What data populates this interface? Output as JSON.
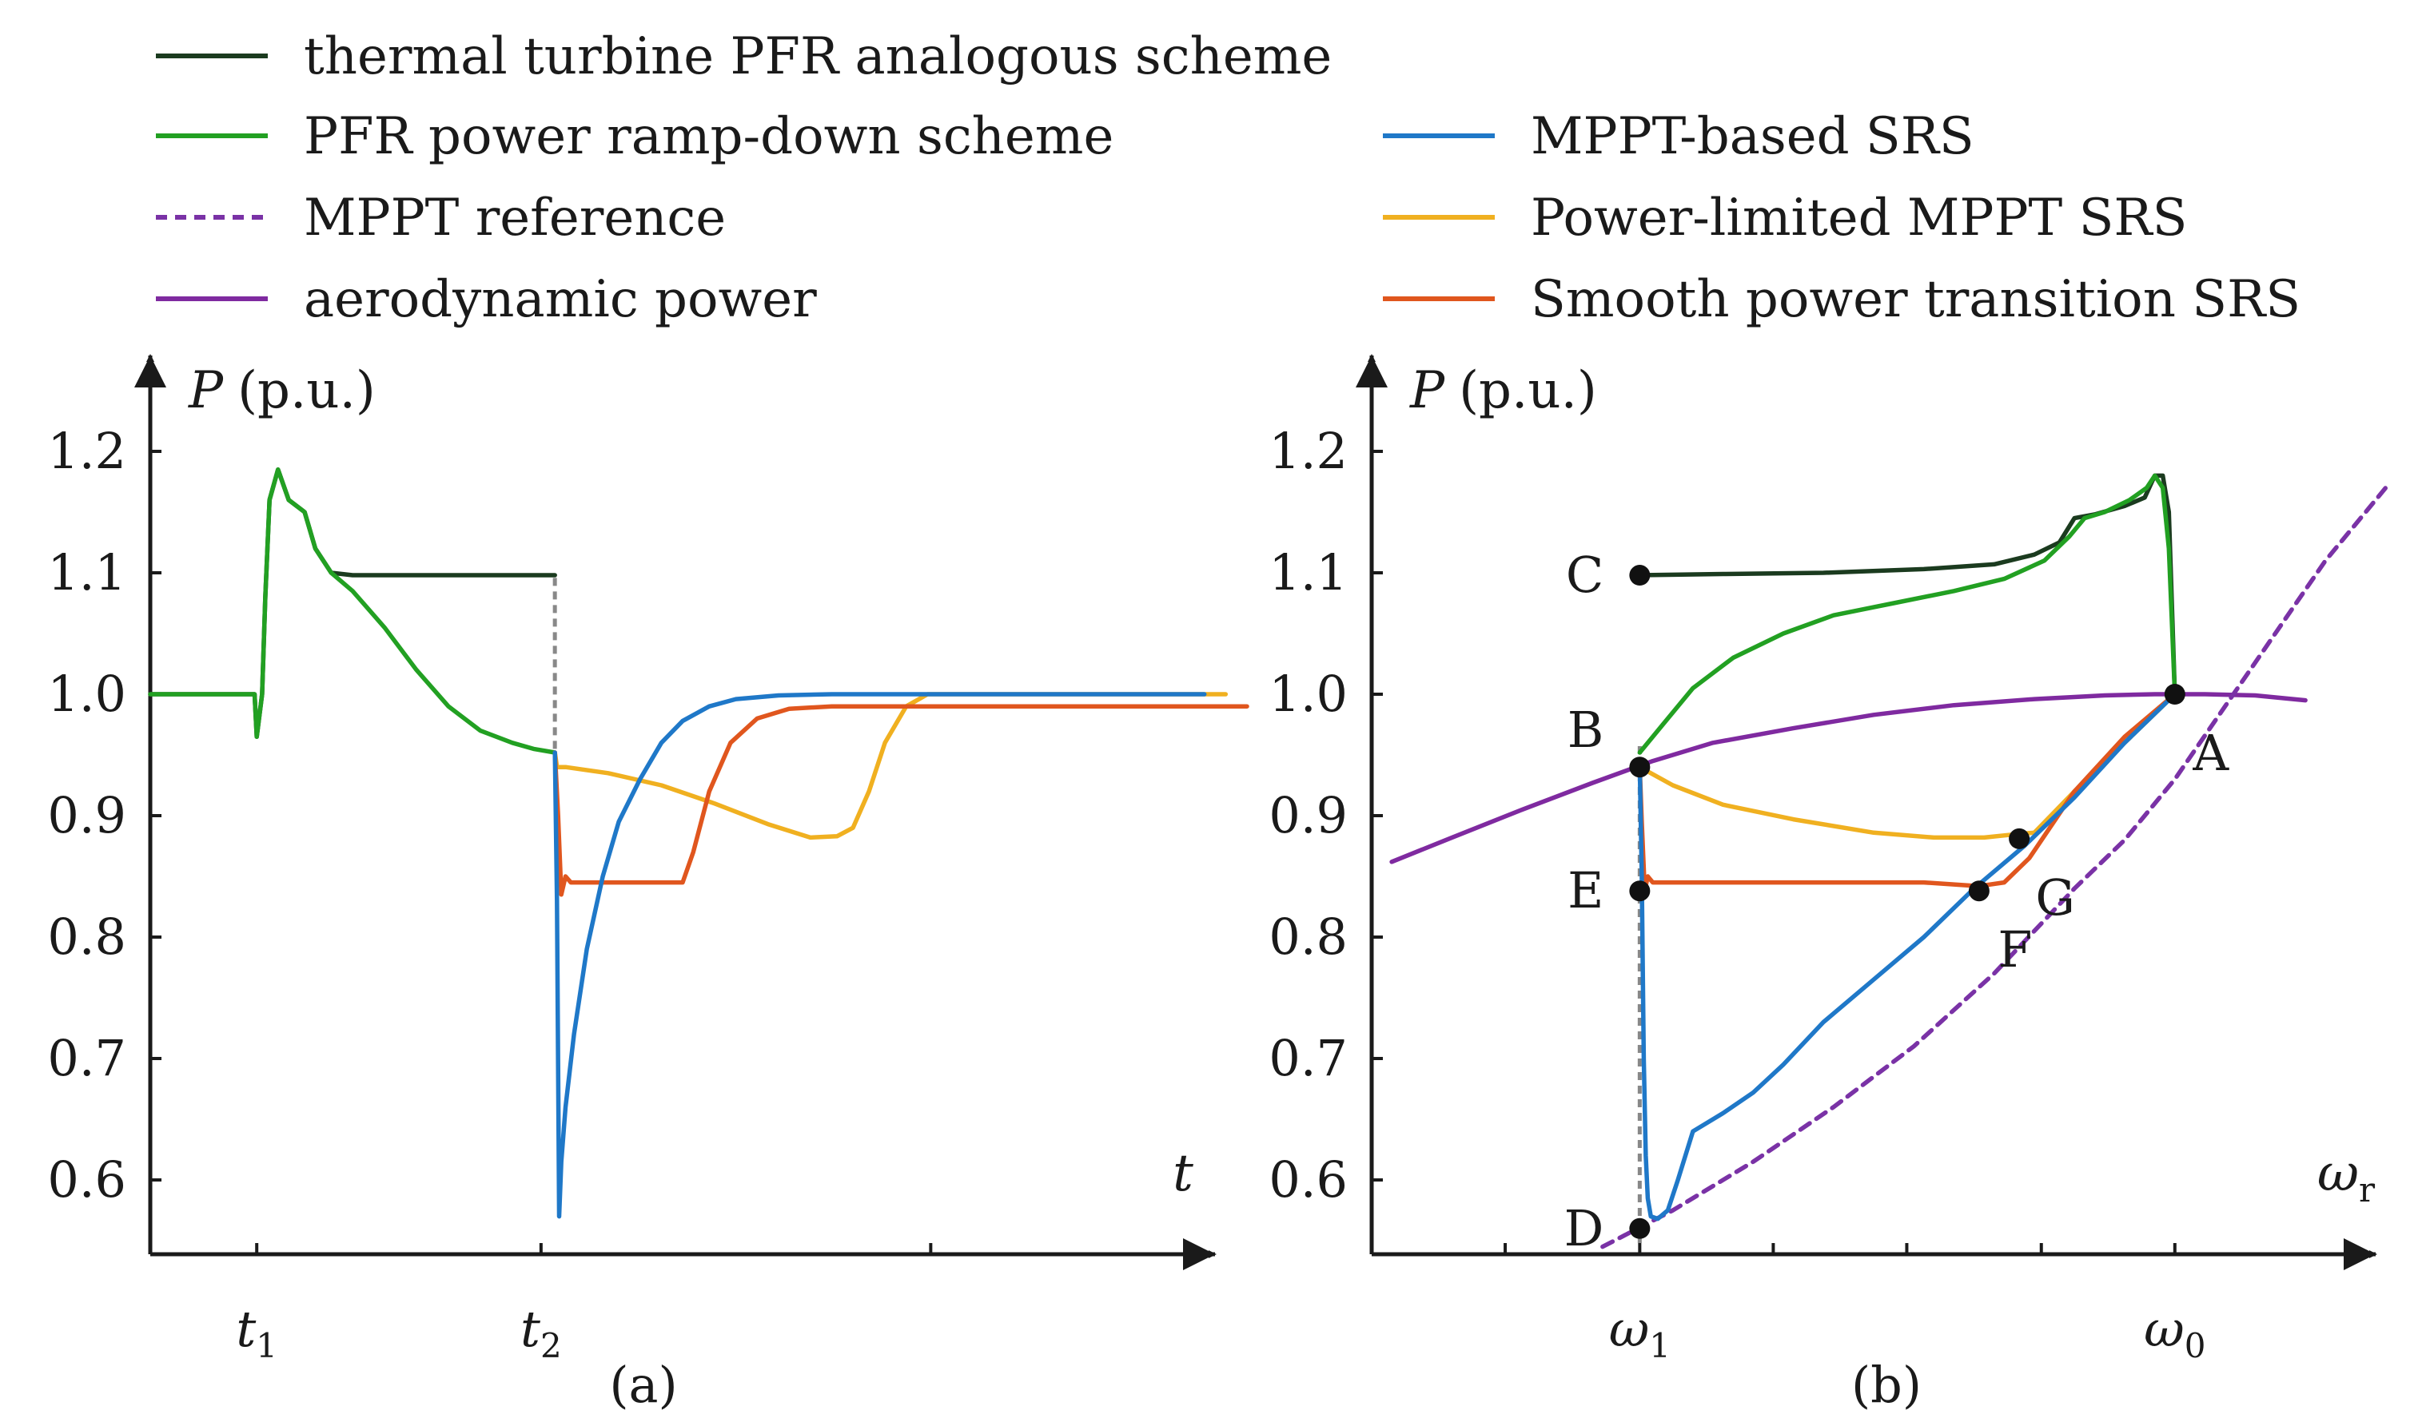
{
  "colors": {
    "thermal": "#1b3b1f",
    "rampdown": "#22a022",
    "mppt_ref": "#7a32a6",
    "aero": "#7f2aa0",
    "mppt_srs": "#1f78c8",
    "limited": "#f0b020",
    "smooth": "#e0561e",
    "axis": "#1a1a1a",
    "dashed_gray": "#888888",
    "point": "#111111"
  },
  "legend": [
    {
      "key": "thermal",
      "label": "thermal turbine PFR analogous scheme",
      "style": "solid"
    },
    {
      "key": "rampdown",
      "label": "PFR power ramp-down scheme",
      "style": "solid"
    },
    {
      "key": "mppt_ref",
      "label": "MPPT reference",
      "style": "dashed"
    },
    {
      "key": "aero",
      "label": "aerodynamic power",
      "style": "solid"
    },
    {
      "key": "mppt_srs",
      "label": "MPPT-based SRS",
      "style": "solid"
    },
    {
      "key": "limited",
      "label": "Power-limited MPPT SRS",
      "style": "solid"
    },
    {
      "key": "smooth",
      "label": "Smooth power transition SRS",
      "style": "solid"
    }
  ],
  "chart_data": [
    {
      "type": "line",
      "panel": "(a)",
      "ylabel": "P (p.u.)",
      "ylabel_var": "P",
      "ylabel_unit": "(p.u.)",
      "xlabel": "t",
      "ylim": [
        0.54,
        1.27
      ],
      "xlim": [
        0,
        10
      ],
      "yticks": [
        0.6,
        0.7,
        0.8,
        0.9,
        1.0,
        1.1,
        1.2
      ],
      "ytick_labels": [
        "0.6",
        "0.7",
        "0.8",
        "0.9",
        "1.0",
        "1.1",
        "1.2"
      ],
      "xtick_positions": [
        1.0,
        3.67,
        7.33
      ],
      "xtick_labels": [
        {
          "x": 1.0,
          "main": "t",
          "sub": "1"
        },
        {
          "x": 3.67,
          "main": "t",
          "sub": "2"
        }
      ],
      "vline_dashed": {
        "x": 3.8,
        "y": [
          0.955,
          1.1
        ]
      },
      "series": [
        {
          "key": "thermal",
          "name": "thermal turbine PFR analogous scheme",
          "x": [
            0,
            0.5,
            0.98,
            1.0,
            1.05,
            1.08,
            1.12,
            1.2,
            1.3,
            1.45,
            1.55,
            1.7,
            1.9,
            2.2,
            2.6,
            3.0,
            3.4,
            3.8
          ],
          "y": [
            1.0,
            1.0,
            1.0,
            0.965,
            1.0,
            1.08,
            1.16,
            1.185,
            1.16,
            1.15,
            1.12,
            1.1,
            1.098,
            1.098,
            1.098,
            1.098,
            1.098,
            1.098
          ]
        },
        {
          "key": "rampdown",
          "name": "PFR power ramp-down scheme",
          "x": [
            0,
            0.5,
            0.98,
            1.0,
            1.05,
            1.08,
            1.12,
            1.2,
            1.3,
            1.45,
            1.55,
            1.7,
            1.9,
            2.2,
            2.5,
            2.8,
            3.1,
            3.4,
            3.6,
            3.8
          ],
          "y": [
            1.0,
            1.0,
            1.0,
            0.965,
            1.0,
            1.08,
            1.16,
            1.185,
            1.16,
            1.15,
            1.12,
            1.1,
            1.085,
            1.055,
            1.02,
            0.99,
            0.97,
            0.96,
            0.955,
            0.952
          ]
        },
        {
          "key": "limited",
          "name": "Power-limited MPPT SRS",
          "x": [
            3.8,
            3.82,
            3.9,
            4.3,
            4.8,
            5.3,
            5.8,
            6.2,
            6.45,
            6.6,
            6.75,
            6.9,
            7.1,
            7.3,
            7.6,
            8.1,
            10.1
          ],
          "y": [
            0.952,
            0.94,
            0.94,
            0.935,
            0.925,
            0.91,
            0.893,
            0.882,
            0.883,
            0.89,
            0.92,
            0.96,
            0.99,
            1.0,
            1.0,
            1.0,
            1.0
          ]
        },
        {
          "key": "smooth",
          "name": "Smooth power transition SRS",
          "x": [
            3.8,
            3.83,
            3.86,
            3.9,
            3.95,
            4.05,
            4.5,
            5.0,
            5.1,
            5.25,
            5.45,
            5.7,
            6.0,
            6.4,
            6.9,
            7.5,
            10.3
          ],
          "y": [
            0.952,
            0.9,
            0.835,
            0.85,
            0.845,
            0.845,
            0.845,
            0.845,
            0.87,
            0.92,
            0.96,
            0.98,
            0.988,
            0.99,
            0.99,
            0.99,
            0.99
          ]
        },
        {
          "key": "mppt_srs",
          "name": "MPPT-based SRS",
          "x": [
            3.8,
            3.82,
            3.84,
            3.86,
            3.9,
            3.98,
            4.1,
            4.25,
            4.4,
            4.6,
            4.8,
            5.0,
            5.25,
            5.5,
            5.9,
            6.4,
            7.2,
            8.2,
            9.9
          ],
          "y": [
            0.952,
            0.83,
            0.57,
            0.615,
            0.66,
            0.72,
            0.79,
            0.85,
            0.895,
            0.93,
            0.96,
            0.978,
            0.99,
            0.996,
            0.999,
            1.0,
            1.0,
            1.0,
            1.0
          ]
        }
      ]
    },
    {
      "type": "line",
      "panel": "(b)",
      "ylabel": "P (p.u.)",
      "ylabel_var": "P",
      "ylabel_unit": "(p.u.)",
      "xlabel": "ωr",
      "xlabel_main": "ω",
      "xlabel_sub": "r",
      "ylim": [
        0.54,
        1.27
      ],
      "xlim": [
        0,
        10
      ],
      "yticks": [
        0.6,
        0.7,
        0.8,
        0.9,
        1.0,
        1.1,
        1.2
      ],
      "ytick_labels": [
        "0.6",
        "0.7",
        "0.8",
        "0.9",
        "1.0",
        "1.1",
        "1.2"
      ],
      "xtick_positions": [
        1.33,
        2.67,
        4.0,
        5.33,
        6.67,
        8.0
      ],
      "xtick_labels": [
        {
          "x": 2.67,
          "main": "ω",
          "sub": "1"
        },
        {
          "x": 8.0,
          "main": "ω",
          "sub": "0"
        }
      ],
      "vline_dashed": {
        "x": 2.67,
        "y": [
          0.548,
          0.96
        ]
      },
      "series": [
        {
          "key": "aero",
          "name": "aerodynamic power",
          "x": [
            0.2,
            0.8,
            1.5,
            2.2,
            2.8,
            3.4,
            4.2,
            5.0,
            5.8,
            6.6,
            7.3,
            7.8,
            8.3,
            8.8,
            9.3
          ],
          "y": [
            0.862,
            0.882,
            0.905,
            0.927,
            0.945,
            0.96,
            0.972,
            0.983,
            0.991,
            0.996,
            0.999,
            1.0,
            1.0,
            0.999,
            0.995
          ]
        },
        {
          "key": "mppt_ref",
          "name": "MPPT reference",
          "x": [
            2.3,
            3.0,
            3.8,
            4.6,
            5.4,
            6.2,
            7.0,
            7.5,
            8.0,
            8.5,
            9.0,
            9.5,
            10.1
          ],
          "y": [
            0.545,
            0.575,
            0.615,
            0.66,
            0.71,
            0.77,
            0.84,
            0.88,
            0.93,
            0.99,
            1.05,
            1.11,
            1.17
          ]
        },
        {
          "key": "thermal",
          "name": "thermal turbine PFR analogous scheme",
          "x": [
            2.67,
            3.5,
            4.5,
            5.5,
            6.2,
            6.6,
            6.85,
            7.0,
            7.2,
            7.5,
            7.7,
            7.8,
            7.88,
            7.94,
            8.0
          ],
          "y": [
            1.098,
            1.099,
            1.1,
            1.103,
            1.107,
            1.115,
            1.125,
            1.145,
            1.148,
            1.155,
            1.162,
            1.18,
            1.18,
            1.15,
            1.0
          ]
        },
        {
          "key": "rampdown",
          "name": "PFR power ramp-down scheme",
          "x": [
            2.67,
            2.9,
            3.2,
            3.6,
            4.1,
            4.6,
            5.2,
            5.8,
            6.3,
            6.7,
            6.95,
            7.1,
            7.3,
            7.55,
            7.72,
            7.8,
            7.88,
            7.94,
            8.0
          ],
          "y": [
            0.952,
            0.975,
            1.005,
            1.03,
            1.05,
            1.065,
            1.075,
            1.085,
            1.095,
            1.11,
            1.13,
            1.145,
            1.15,
            1.16,
            1.17,
            1.18,
            1.17,
            1.12,
            1.0
          ]
        },
        {
          "key": "limited",
          "name": "Power-limited MPPT SRS",
          "x": [
            2.67,
            3.0,
            3.5,
            4.2,
            5.0,
            5.6,
            6.1,
            6.45,
            6.6,
            7.0,
            7.5,
            8.0
          ],
          "y": [
            0.94,
            0.925,
            0.909,
            0.897,
            0.886,
            0.882,
            0.882,
            0.885,
            0.886,
            0.92,
            0.96,
            1.0
          ]
        },
        {
          "key": "smooth",
          "name": "Smooth power transition SRS",
          "x": [
            2.67,
            2.69,
            2.72,
            2.75,
            2.8,
            2.9,
            3.5,
            4.5,
            5.5,
            6.05,
            6.3,
            6.55,
            7.0,
            7.5,
            8.0
          ],
          "y": [
            0.94,
            0.895,
            0.838,
            0.85,
            0.845,
            0.845,
            0.845,
            0.845,
            0.845,
            0.842,
            0.845,
            0.865,
            0.92,
            0.965,
            1.0
          ]
        },
        {
          "key": "mppt_srs",
          "name": "MPPT-based SRS",
          "x": [
            2.67,
            2.69,
            2.71,
            2.73,
            2.75,
            2.78,
            2.85,
            2.95,
            3.05,
            3.2,
            3.5,
            3.8,
            4.1,
            4.5,
            5.0,
            5.5,
            6.0,
            6.5,
            7.0,
            7.5,
            8.0
          ],
          "y": [
            0.94,
            0.85,
            0.7,
            0.62,
            0.585,
            0.57,
            0.568,
            0.575,
            0.6,
            0.64,
            0.655,
            0.672,
            0.695,
            0.73,
            0.765,
            0.8,
            0.84,
            0.875,
            0.915,
            0.96,
            1.0
          ]
        }
      ],
      "points": [
        {
          "label": "A",
          "x": 8.0,
          "y": 1.0,
          "label_pos": "below-right"
        },
        {
          "label": "B",
          "x": 2.67,
          "y": 0.94,
          "label_pos": "upper-left"
        },
        {
          "label": "C",
          "x": 2.67,
          "y": 1.098,
          "label_pos": "left"
        },
        {
          "label": "D",
          "x": 2.67,
          "y": 0.56,
          "label_pos": "left"
        },
        {
          "label": "E",
          "x": 2.67,
          "y": 0.838,
          "label_pos": "left"
        },
        {
          "label": "F",
          "x": 6.05,
          "y": 0.838,
          "label_pos": "below-right"
        },
        {
          "label": "G",
          "x": 6.45,
          "y": 0.881,
          "label_pos": "below-right"
        }
      ]
    }
  ]
}
